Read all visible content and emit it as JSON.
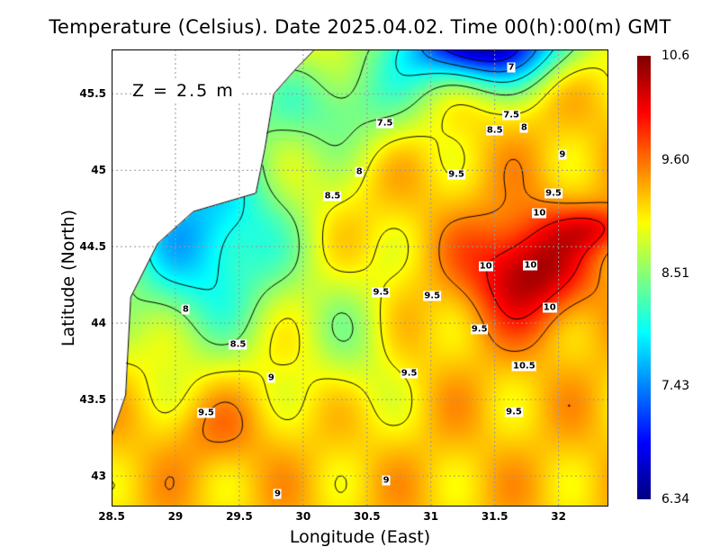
{
  "chart_data": {
    "type": "heatmap",
    "title": "Temperature (Celsius). Date 2025.04.02. Time 00(h):00(m) GMT",
    "xlabel": "Longitude (East)",
    "ylabel": "Latitude (North)",
    "annotation": "Z = 2.5 m",
    "xlim": [
      28.5,
      32.39
    ],
    "ylim": [
      42.8,
      45.79
    ],
    "xticks": [
      "28.5",
      "29",
      "29.5",
      "30",
      "30.5",
      "31",
      "31.5",
      "32"
    ],
    "xtick_values": [
      28.5,
      29,
      29.5,
      30,
      30.5,
      31,
      31.5,
      32
    ],
    "yticks": [
      "43",
      "43.5",
      "44",
      "44.5",
      "45",
      "45.5"
    ],
    "ytick_values": [
      43,
      43.5,
      44,
      44.5,
      45,
      45.5
    ],
    "grid": true,
    "colorbar": {
      "min": 6.34,
      "max": 10.6,
      "ticks": [
        "10.6",
        "9.60",
        "8.51",
        "7.43",
        "6.34"
      ],
      "tick_values": [
        10.6,
        9.6,
        8.51,
        7.43,
        6.34
      ],
      "colormap": "jet"
    },
    "contour_levels": [
      7,
      7.5,
      8,
      8.5,
      9,
      9.5,
      10,
      10.5
    ],
    "contour_labels": [
      {
        "text": "7",
        "lon": 31.63,
        "lat": 45.67
      },
      {
        "text": "7.5",
        "lon": 30.64,
        "lat": 45.31
      },
      {
        "text": "7.5",
        "lon": 31.63,
        "lat": 45.36
      },
      {
        "text": "8.5",
        "lon": 31.5,
        "lat": 45.26
      },
      {
        "text": "8",
        "lon": 31.73,
        "lat": 45.28
      },
      {
        "text": "8",
        "lon": 30.44,
        "lat": 44.99
      },
      {
        "text": "8",
        "lon": 29.08,
        "lat": 44.09
      },
      {
        "text": "9",
        "lon": 32.03,
        "lat": 45.1
      },
      {
        "text": "9",
        "lon": 29.75,
        "lat": 43.64
      },
      {
        "text": "9",
        "lon": 30.65,
        "lat": 42.97
      },
      {
        "text": "9",
        "lon": 29.8,
        "lat": 42.88
      },
      {
        "text": "9.5",
        "lon": 31.2,
        "lat": 44.97
      },
      {
        "text": "9.5",
        "lon": 31.96,
        "lat": 44.85
      },
      {
        "text": "9.5",
        "lon": 30.61,
        "lat": 44.2
      },
      {
        "text": "9.5",
        "lon": 31.01,
        "lat": 44.18
      },
      {
        "text": "9.5",
        "lon": 31.38,
        "lat": 43.96
      },
      {
        "text": "9.5",
        "lon": 30.83,
        "lat": 43.67
      },
      {
        "text": "9.5",
        "lon": 31.65,
        "lat": 43.42
      },
      {
        "text": "9.5",
        "lon": 29.24,
        "lat": 43.41
      },
      {
        "text": "8.5",
        "lon": 30.23,
        "lat": 44.83
      },
      {
        "text": "8.5",
        "lon": 29.49,
        "lat": 43.86
      },
      {
        "text": "10",
        "lon": 31.85,
        "lat": 44.72
      },
      {
        "text": "10",
        "lon": 31.43,
        "lat": 44.37
      },
      {
        "text": "10",
        "lon": 31.78,
        "lat": 44.38
      },
      {
        "text": "10",
        "lon": 31.93,
        "lat": 44.1
      },
      {
        "text": "10.5",
        "lon": 31.73,
        "lat": 43.72
      }
    ],
    "coastline": [
      [
        28.5,
        43.26
      ],
      [
        28.61,
        43.53
      ],
      [
        28.65,
        44.17
      ],
      [
        28.86,
        44.52
      ],
      [
        29.14,
        44.73
      ],
      [
        29.63,
        44.85
      ],
      [
        29.7,
        45.14
      ],
      [
        29.77,
        45.5
      ],
      [
        29.95,
        45.67
      ],
      [
        30.09,
        45.79
      ],
      [
        28.5,
        45.79
      ]
    ]
  }
}
